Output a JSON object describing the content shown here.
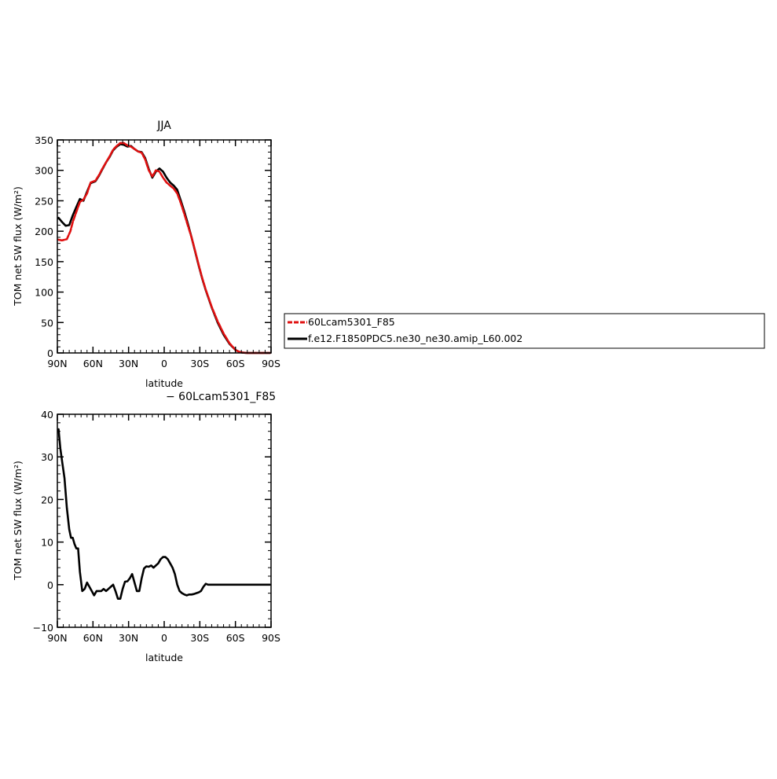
{
  "chart_data": [
    {
      "type": "line",
      "title": "JJA",
      "xlabel": "latitude",
      "ylabel": "TOM net SW flux (W/m²)",
      "x_ticks": [
        "90N",
        "60N",
        "30N",
        "0",
        "30S",
        "60S",
        "90S"
      ],
      "x_tick_values": [
        90,
        60,
        30,
        0,
        -30,
        -60,
        -90
      ],
      "xlim": [
        90,
        -90
      ],
      "y_ticks": [
        "0",
        "50",
        "100",
        "150",
        "200",
        "250",
        "300",
        "350"
      ],
      "y_tick_values": [
        0,
        50,
        100,
        150,
        200,
        250,
        300,
        350
      ],
      "ylim": [
        0,
        350
      ],
      "grid": false,
      "legend": {
        "placement": "right-outside",
        "entries": [
          "60Lcam5301_F85",
          "f.e12.F1850PDC5.ne30_ne30.amip_L60.002"
        ]
      },
      "series": [
        {
          "name": "60Lcam5301_F85",
          "color": "#e01010",
          "style": "dashed",
          "x": [
            89,
            86,
            82,
            79,
            77,
            74,
            71,
            68,
            65,
            62,
            58,
            55,
            52,
            49,
            46,
            43,
            40,
            37,
            34,
            31,
            28,
            25,
            22,
            19,
            16,
            13,
            10,
            7,
            4,
            1,
            -2,
            -5,
            -8,
            -11,
            -14,
            -17,
            -20,
            -23,
            -26,
            -29,
            -32,
            -35,
            -40,
            -45,
            -50,
            -55,
            -60,
            -63,
            -66,
            -70,
            -75,
            -80,
            -85,
            -89
          ],
          "values": [
            186,
            185,
            187,
            200,
            215,
            232,
            248,
            252,
            262,
            280,
            283,
            292,
            303,
            313,
            323,
            334,
            340,
            345,
            345,
            341,
            339,
            335,
            331,
            329,
            318,
            300,
            290,
            300,
            298,
            288,
            280,
            275,
            270,
            262,
            246,
            228,
            209,
            190,
            168,
            145,
            123,
            104,
            76,
            52,
            32,
            16,
            5,
            2,
            0.5,
            0,
            0,
            0,
            0,
            0
          ]
        },
        {
          "name": "f.e12.F1850PDC5.ne30_ne30.amip_L60.002",
          "color": "#000000",
          "style": "solid",
          "x": [
            89,
            86,
            83,
            80,
            77,
            74,
            71,
            68,
            65,
            62,
            58,
            55,
            52,
            49,
            46,
            43,
            40,
            37,
            34,
            31,
            28,
            25,
            22,
            19,
            16,
            13,
            10,
            7,
            4,
            1,
            -2,
            -5,
            -8,
            -11,
            -14,
            -17,
            -20,
            -23,
            -26,
            -29,
            -32,
            -35,
            -40,
            -45,
            -50,
            -55,
            -60,
            -63,
            -66,
            -70,
            -75,
            -80,
            -85,
            -89
          ],
          "values": [
            222,
            215,
            209,
            210,
            226,
            240,
            253,
            250,
            265,
            279,
            282,
            291,
            302,
            313,
            322,
            333,
            339,
            343,
            342,
            339,
            340,
            335,
            331,
            330,
            320,
            302,
            288,
            298,
            303,
            298,
            288,
            280,
            275,
            268,
            250,
            232,
            212,
            190,
            167,
            144,
            122,
            103,
            75,
            50,
            30,
            15,
            5,
            2,
            0.5,
            0,
            0,
            0,
            0,
            0
          ]
        }
      ]
    },
    {
      "type": "line",
      "title": "− 60Lcam5301_F85",
      "xlabel": "latitude",
      "ylabel": "TOM net SW flux (W/m²)",
      "x_ticks": [
        "90N",
        "60N",
        "30N",
        "0",
        "30S",
        "60S",
        "90S"
      ],
      "x_tick_values": [
        90,
        60,
        30,
        0,
        -30,
        -60,
        -90
      ],
      "xlim": [
        90,
        -90
      ],
      "y_ticks": [
        "−10",
        "0",
        "10",
        "20",
        "30",
        "40"
      ],
      "y_tick_values": [
        -10,
        0,
        10,
        20,
        30,
        40
      ],
      "ylim": [
        -10,
        40
      ],
      "grid": false,
      "series": [
        {
          "name": "",
          "color": "#000000",
          "style": "solid",
          "x": [
            89,
            87.5,
            86,
            84,
            82,
            80,
            78.5,
            77,
            75.5,
            74,
            72.5,
            71,
            69,
            67,
            65,
            63,
            61,
            59,
            57,
            55,
            53,
            51,
            49,
            47,
            45,
            43,
            41,
            39,
            37,
            35,
            33,
            31,
            29,
            27,
            25,
            23,
            21,
            19,
            17,
            15,
            13,
            11,
            9,
            7,
            5,
            3,
            1,
            -1,
            -3,
            -5,
            -7,
            -9,
            -11,
            -13,
            -15,
            -17,
            -19,
            -21,
            -23,
            -25,
            -27,
            -29,
            -31,
            -33,
            -35,
            -37,
            -39,
            -41,
            -43,
            -45,
            -48,
            -51,
            -54,
            -57,
            -60,
            -63,
            -66,
            -70,
            -75,
            -80,
            -85,
            -89
          ],
          "values": [
            36.5,
            32,
            29,
            25,
            18,
            13,
            11,
            11,
            9.5,
            8.5,
            8.5,
            3,
            -1.5,
            -1,
            0.5,
            -0.5,
            -1.5,
            -2.5,
            -1.5,
            -1.5,
            -1.5,
            -1,
            -1.5,
            -1,
            -0.5,
            0,
            -1.5,
            -3.3,
            -3.3,
            -1,
            0.7,
            0.8,
            1.5,
            2.5,
            0.5,
            -1.5,
            -1.5,
            1.5,
            3.8,
            4.3,
            4.2,
            4.5,
            4.0,
            4.5,
            5.0,
            6.0,
            6.5,
            6.5,
            6.0,
            5.0,
            4.0,
            2.5,
            0,
            -1.5,
            -2,
            -2.3,
            -2.5,
            -2.3,
            -2.3,
            -2.2,
            -2.0,
            -1.8,
            -1.5,
            -0.5,
            0.2,
            0,
            0,
            0,
            0,
            0,
            0,
            0,
            0,
            0,
            0,
            0,
            0,
            0,
            0,
            0,
            0,
            0
          ]
        }
      ]
    }
  ]
}
